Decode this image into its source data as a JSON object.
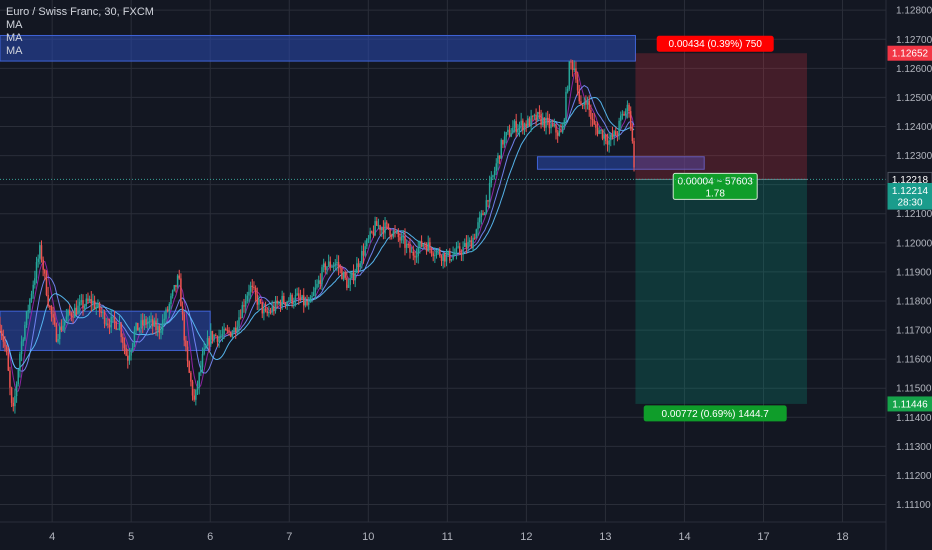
{
  "header": {
    "symbol_line": "Euro / Swiss Franc, 30, FXCM",
    "indicators": [
      "MA",
      "MA",
      "MA"
    ]
  },
  "chart_data": {
    "type": "candlestick",
    "symbol": "Euro / Swiss Franc",
    "interval": "30",
    "source": "FXCM",
    "ylim": [
      1.1104,
      1.12835
    ],
    "y_ticks": [
      "1.12800",
      "1.12700",
      "1.12600",
      "1.12500",
      "1.12400",
      "1.12300",
      "1.12200",
      "1.12100",
      "1.12000",
      "1.11900",
      "1.11800",
      "1.11700",
      "1.11600",
      "1.11500",
      "1.11400",
      "1.11300",
      "1.11200",
      "1.11100"
    ],
    "x_ticks": [
      {
        "label": "4",
        "day": 4
      },
      {
        "label": "5",
        "day": 5
      },
      {
        "label": "6",
        "day": 6
      },
      {
        "label": "7",
        "day": 7
      },
      {
        "label": "10",
        "day": 8
      },
      {
        "label": "11",
        "day": 9
      },
      {
        "label": "12",
        "day": 10
      },
      {
        "label": "13",
        "day": 11
      },
      {
        "label": "14",
        "day": 12
      },
      {
        "label": "17",
        "day": 13
      },
      {
        "label": "18",
        "day": 14
      }
    ],
    "x_range": [
      3.34,
      14.55
    ],
    "price_path": [
      [
        3.34,
        1.1172
      ],
      [
        3.42,
        1.1162
      ],
      [
        3.5,
        1.114
      ],
      [
        3.6,
        1.1164
      ],
      [
        3.75,
        1.1185
      ],
      [
        3.85,
        1.1198
      ],
      [
        3.95,
        1.118
      ],
      [
        4.05,
        1.1168
      ],
      [
        4.2,
        1.1175
      ],
      [
        4.35,
        1.1178
      ],
      [
        4.5,
        1.118
      ],
      [
        4.7,
        1.1173
      ],
      [
        4.85,
        1.1172
      ],
      [
        4.95,
        1.116
      ],
      [
        5.05,
        1.117
      ],
      [
        5.2,
        1.1173
      ],
      [
        5.35,
        1.117
      ],
      [
        5.45,
        1.1176
      ],
      [
        5.6,
        1.1188
      ],
      [
        5.7,
        1.116
      ],
      [
        5.8,
        1.1145
      ],
      [
        5.9,
        1.116
      ],
      [
        6.0,
        1.1168
      ],
      [
        6.15,
        1.1168
      ],
      [
        6.3,
        1.117
      ],
      [
        6.5,
        1.1185
      ],
      [
        6.7,
        1.1175
      ],
      [
        6.9,
        1.118
      ],
      [
        7.1,
        1.1181
      ],
      [
        7.25,
        1.1178
      ],
      [
        7.45,
        1.1192
      ],
      [
        7.6,
        1.1193
      ],
      [
        7.75,
        1.1185
      ],
      [
        7.9,
        1.1195
      ],
      [
        8.1,
        1.1206
      ],
      [
        8.25,
        1.1205
      ],
      [
        8.45,
        1.12
      ],
      [
        8.55,
        1.1196
      ],
      [
        8.7,
        1.12
      ],
      [
        8.85,
        1.1197
      ],
      [
        9.0,
        1.1195
      ],
      [
        9.15,
        1.1197
      ],
      [
        9.3,
        1.12
      ],
      [
        9.45,
        1.121
      ],
      [
        9.6,
        1.1225
      ],
      [
        9.7,
        1.1235
      ],
      [
        9.85,
        1.124
      ],
      [
        10.0,
        1.1241
      ],
      [
        10.15,
        1.1243
      ],
      [
        10.3,
        1.124
      ],
      [
        10.45,
        1.1237
      ],
      [
        10.55,
        1.1262
      ],
      [
        10.62,
        1.126
      ],
      [
        10.68,
        1.1245
      ],
      [
        10.75,
        1.125
      ],
      [
        10.85,
        1.124
      ],
      [
        10.95,
        1.1238
      ],
      [
        11.05,
        1.1235
      ],
      [
        11.15,
        1.1238
      ],
      [
        11.2,
        1.1243
      ],
      [
        11.3,
        1.1247
      ],
      [
        11.38,
        1.1222
      ]
    ],
    "zones": [
      {
        "name": "top-zone",
        "x0": 3.34,
        "x1": 11.38,
        "y_top": 1.12713,
        "y_bot": 1.12625,
        "color": "#2a4bb3"
      },
      {
        "name": "left-zone",
        "x0": 3.34,
        "x1": 5.999,
        "y_top": 1.11765,
        "y_bot": 1.1163,
        "color": "#2a4bb3"
      },
      {
        "name": "mid-zone",
        "x0": 10.14,
        "x1": 12.25,
        "y_top": 1.12296,
        "y_bot": 1.12253,
        "color": "#2a4bb3"
      }
    ],
    "position": {
      "x0": 11.38,
      "x1": 13.55,
      "stop": 1.12652,
      "entry": 1.12218,
      "target": 1.11446,
      "risk_label": "0.00434 (0.39%) 750",
      "entry_label_1": "0.00004 ~ 57603",
      "entry_label_2": "1.78",
      "reward_label": "0.00772 (0.69%) 1444.7",
      "risk_color": "#ff0000",
      "reward_color": "#0f9d2a"
    },
    "price_labels": [
      {
        "price": 1.12652,
        "text": "1.12652",
        "bg": "#f23645"
      },
      {
        "price": 1.12218,
        "text": "1.12218",
        "bg": "#131722",
        "border": "#4c525e"
      },
      {
        "price": 1.1218,
        "text": "1.12214",
        "bg": "#1a9c8c"
      },
      {
        "price": 1.1214,
        "text": "28:30",
        "bg": "#1a9c8c"
      },
      {
        "price": 1.11446,
        "text": "1.11446",
        "bg": "#16a34a"
      }
    ],
    "colors": {
      "background": "#131722",
      "grid": "#2a2e39",
      "axis_text": "#b2b5be",
      "candle_up": "#26a69a",
      "candle_down": "#ef5350",
      "ma": [
        "#9c27b0",
        "#7b8cff",
        "#5cc3ff"
      ],
      "crosshair": "#3aa198"
    }
  }
}
